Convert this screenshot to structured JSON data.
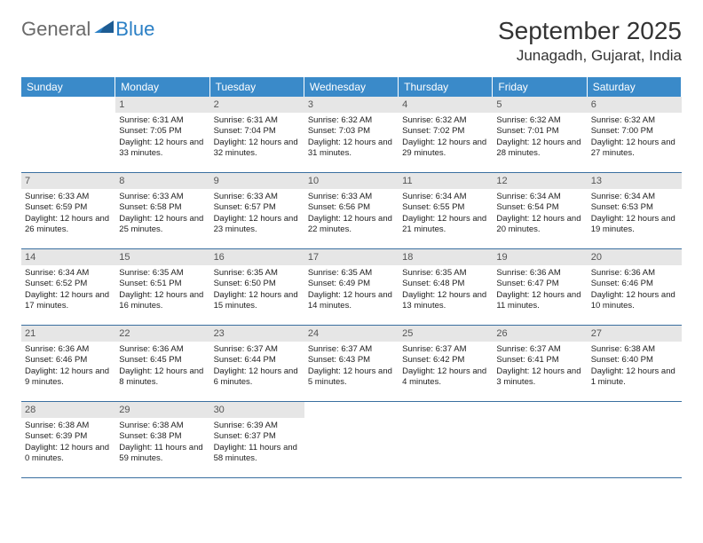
{
  "logo": {
    "part1": "General",
    "part2": "Blue"
  },
  "title": "September 2025",
  "location": "Junagadh, Gujarat, India",
  "colors": {
    "header_bg": "#3a8ac9",
    "header_text": "#ffffff",
    "daynum_bg": "#e6e6e6",
    "border": "#3a6fa0",
    "logo_gray": "#6a6a6a",
    "logo_blue": "#2a7fc5"
  },
  "day_headers": [
    "Sunday",
    "Monday",
    "Tuesday",
    "Wednesday",
    "Thursday",
    "Friday",
    "Saturday"
  ],
  "leading_blanks": 1,
  "days": [
    {
      "n": 1,
      "sunrise": "6:31 AM",
      "sunset": "7:05 PM",
      "daylight": "12 hours and 33 minutes."
    },
    {
      "n": 2,
      "sunrise": "6:31 AM",
      "sunset": "7:04 PM",
      "daylight": "12 hours and 32 minutes."
    },
    {
      "n": 3,
      "sunrise": "6:32 AM",
      "sunset": "7:03 PM",
      "daylight": "12 hours and 31 minutes."
    },
    {
      "n": 4,
      "sunrise": "6:32 AM",
      "sunset": "7:02 PM",
      "daylight": "12 hours and 29 minutes."
    },
    {
      "n": 5,
      "sunrise": "6:32 AM",
      "sunset": "7:01 PM",
      "daylight": "12 hours and 28 minutes."
    },
    {
      "n": 6,
      "sunrise": "6:32 AM",
      "sunset": "7:00 PM",
      "daylight": "12 hours and 27 minutes."
    },
    {
      "n": 7,
      "sunrise": "6:33 AM",
      "sunset": "6:59 PM",
      "daylight": "12 hours and 26 minutes."
    },
    {
      "n": 8,
      "sunrise": "6:33 AM",
      "sunset": "6:58 PM",
      "daylight": "12 hours and 25 minutes."
    },
    {
      "n": 9,
      "sunrise": "6:33 AM",
      "sunset": "6:57 PM",
      "daylight": "12 hours and 23 minutes."
    },
    {
      "n": 10,
      "sunrise": "6:33 AM",
      "sunset": "6:56 PM",
      "daylight": "12 hours and 22 minutes."
    },
    {
      "n": 11,
      "sunrise": "6:34 AM",
      "sunset": "6:55 PM",
      "daylight": "12 hours and 21 minutes."
    },
    {
      "n": 12,
      "sunrise": "6:34 AM",
      "sunset": "6:54 PM",
      "daylight": "12 hours and 20 minutes."
    },
    {
      "n": 13,
      "sunrise": "6:34 AM",
      "sunset": "6:53 PM",
      "daylight": "12 hours and 19 minutes."
    },
    {
      "n": 14,
      "sunrise": "6:34 AM",
      "sunset": "6:52 PM",
      "daylight": "12 hours and 17 minutes."
    },
    {
      "n": 15,
      "sunrise": "6:35 AM",
      "sunset": "6:51 PM",
      "daylight": "12 hours and 16 minutes."
    },
    {
      "n": 16,
      "sunrise": "6:35 AM",
      "sunset": "6:50 PM",
      "daylight": "12 hours and 15 minutes."
    },
    {
      "n": 17,
      "sunrise": "6:35 AM",
      "sunset": "6:49 PM",
      "daylight": "12 hours and 14 minutes."
    },
    {
      "n": 18,
      "sunrise": "6:35 AM",
      "sunset": "6:48 PM",
      "daylight": "12 hours and 13 minutes."
    },
    {
      "n": 19,
      "sunrise": "6:36 AM",
      "sunset": "6:47 PM",
      "daylight": "12 hours and 11 minutes."
    },
    {
      "n": 20,
      "sunrise": "6:36 AM",
      "sunset": "6:46 PM",
      "daylight": "12 hours and 10 minutes."
    },
    {
      "n": 21,
      "sunrise": "6:36 AM",
      "sunset": "6:46 PM",
      "daylight": "12 hours and 9 minutes."
    },
    {
      "n": 22,
      "sunrise": "6:36 AM",
      "sunset": "6:45 PM",
      "daylight": "12 hours and 8 minutes."
    },
    {
      "n": 23,
      "sunrise": "6:37 AM",
      "sunset": "6:44 PM",
      "daylight": "12 hours and 6 minutes."
    },
    {
      "n": 24,
      "sunrise": "6:37 AM",
      "sunset": "6:43 PM",
      "daylight": "12 hours and 5 minutes."
    },
    {
      "n": 25,
      "sunrise": "6:37 AM",
      "sunset": "6:42 PM",
      "daylight": "12 hours and 4 minutes."
    },
    {
      "n": 26,
      "sunrise": "6:37 AM",
      "sunset": "6:41 PM",
      "daylight": "12 hours and 3 minutes."
    },
    {
      "n": 27,
      "sunrise": "6:38 AM",
      "sunset": "6:40 PM",
      "daylight": "12 hours and 1 minute."
    },
    {
      "n": 28,
      "sunrise": "6:38 AM",
      "sunset": "6:39 PM",
      "daylight": "12 hours and 0 minutes."
    },
    {
      "n": 29,
      "sunrise": "6:38 AM",
      "sunset": "6:38 PM",
      "daylight": "11 hours and 59 minutes."
    },
    {
      "n": 30,
      "sunrise": "6:39 AM",
      "sunset": "6:37 PM",
      "daylight": "11 hours and 58 minutes."
    }
  ],
  "labels": {
    "sunrise": "Sunrise:",
    "sunset": "Sunset:",
    "daylight": "Daylight:"
  }
}
